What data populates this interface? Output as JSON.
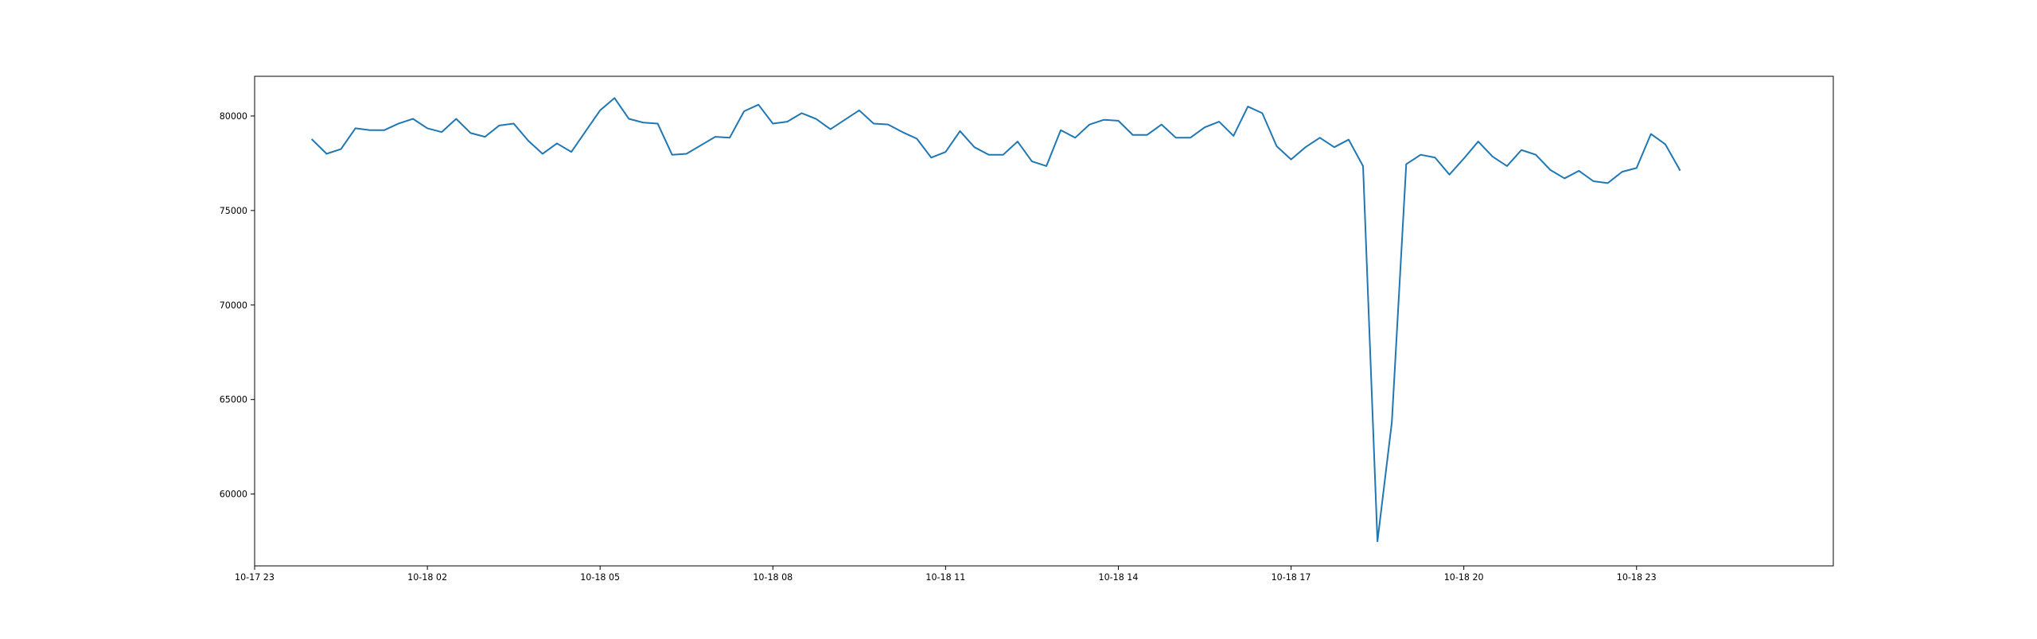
{
  "chart_data": {
    "type": "line",
    "title": "",
    "xlabel": "",
    "ylabel": "",
    "grid": false,
    "legend": "none",
    "colors": {
      "line": "#1f77b4",
      "axes": "#000000",
      "background": "#ffffff"
    },
    "xlim": [
      "2023-10-17 23:00",
      "2023-10-19 02:25"
    ],
    "ylim": [
      56200,
      82100
    ],
    "x_ticks": [
      {
        "value": "2023-10-17 23:00",
        "label": "10-17 23"
      },
      {
        "value": "2023-10-18 02:00",
        "label": "10-18 02"
      },
      {
        "value": "2023-10-18 05:00",
        "label": "10-18 05"
      },
      {
        "value": "2023-10-18 08:00",
        "label": "10-18 08"
      },
      {
        "value": "2023-10-18 11:00",
        "label": "10-18 11"
      },
      {
        "value": "2023-10-18 14:00",
        "label": "10-18 14"
      },
      {
        "value": "2023-10-18 17:00",
        "label": "10-18 17"
      },
      {
        "value": "2023-10-18 20:00",
        "label": "10-18 20"
      },
      {
        "value": "2023-10-18 23:00",
        "label": "10-18 23"
      }
    ],
    "y_ticks": [
      {
        "value": 60000,
        "label": "60000"
      },
      {
        "value": 65000,
        "label": "65000"
      },
      {
        "value": 70000,
        "label": "70000"
      },
      {
        "value": 75000,
        "label": "75000"
      },
      {
        "value": 80000,
        "label": "80000"
      }
    ],
    "series": [
      {
        "x": [
          "2023-10-18 00:00",
          "2023-10-18 00:15",
          "2023-10-18 00:30",
          "2023-10-18 00:45",
          "2023-10-18 01:00",
          "2023-10-18 01:15",
          "2023-10-18 01:30",
          "2023-10-18 01:45",
          "2023-10-18 02:00",
          "2023-10-18 02:15",
          "2023-10-18 02:30",
          "2023-10-18 02:45",
          "2023-10-18 03:00",
          "2023-10-18 03:15",
          "2023-10-18 03:30",
          "2023-10-18 03:45",
          "2023-10-18 04:00",
          "2023-10-18 04:15",
          "2023-10-18 04:30",
          "2023-10-18 04:45",
          "2023-10-18 05:00",
          "2023-10-18 05:15",
          "2023-10-18 05:30",
          "2023-10-18 05:45",
          "2023-10-18 06:00",
          "2023-10-18 06:15",
          "2023-10-18 06:30",
          "2023-10-18 06:45",
          "2023-10-18 07:00",
          "2023-10-18 07:15",
          "2023-10-18 07:30",
          "2023-10-18 07:45",
          "2023-10-18 08:00",
          "2023-10-18 08:15",
          "2023-10-18 08:30",
          "2023-10-18 08:45",
          "2023-10-18 09:00",
          "2023-10-18 09:15",
          "2023-10-18 09:30",
          "2023-10-18 09:45",
          "2023-10-18 10:00",
          "2023-10-18 10:15",
          "2023-10-18 10:30",
          "2023-10-18 10:45",
          "2023-10-18 11:00",
          "2023-10-18 11:15",
          "2023-10-18 11:30",
          "2023-10-18 11:45",
          "2023-10-18 12:00",
          "2023-10-18 12:15",
          "2023-10-18 12:30",
          "2023-10-18 12:45",
          "2023-10-18 13:00",
          "2023-10-18 13:15",
          "2023-10-18 13:30",
          "2023-10-18 13:45",
          "2023-10-18 14:00",
          "2023-10-18 14:15",
          "2023-10-18 14:30",
          "2023-10-18 14:45",
          "2023-10-18 15:00",
          "2023-10-18 15:15",
          "2023-10-18 15:30",
          "2023-10-18 15:45",
          "2023-10-18 16:00",
          "2023-10-18 16:15",
          "2023-10-18 16:30",
          "2023-10-18 16:45",
          "2023-10-18 17:00",
          "2023-10-18 17:15",
          "2023-10-18 17:30",
          "2023-10-18 17:45",
          "2023-10-18 18:00",
          "2023-10-18 18:15",
          "2023-10-18 18:30",
          "2023-10-18 18:45",
          "2023-10-18 19:00",
          "2023-10-18 19:15",
          "2023-10-18 19:30",
          "2023-10-18 19:45",
          "2023-10-18 20:00",
          "2023-10-18 20:15",
          "2023-10-18 20:30",
          "2023-10-18 20:45",
          "2023-10-18 21:00",
          "2023-10-18 21:15",
          "2023-10-18 21:30",
          "2023-10-18 21:45",
          "2023-10-18 22:00",
          "2023-10-18 22:15",
          "2023-10-18 22:30",
          "2023-10-18 22:45",
          "2023-10-18 23:00",
          "2023-10-18 23:15",
          "2023-10-18 23:30",
          "2023-10-18 23:45"
        ],
        "values": [
          78750,
          78000,
          78250,
          79350,
          79250,
          79250,
          79600,
          79850,
          79350,
          79150,
          79850,
          79100,
          78900,
          79500,
          79600,
          78700,
          78000,
          78550,
          78100,
          79200,
          80300,
          80950,
          79850,
          79650,
          79600,
          77950,
          78000,
          78450,
          78900,
          78850,
          80250,
          80600,
          79600,
          79700,
          80150,
          79850,
          79300,
          79800,
          80300,
          79600,
          79550,
          79150,
          78800,
          77800,
          78100,
          79200,
          78350,
          77950,
          77950,
          78650,
          77600,
          77350,
          79250,
          78850,
          79550,
          79800,
          79750,
          79000,
          79000,
          79550,
          78850,
          78850,
          79400,
          79700,
          78950,
          80500,
          80150,
          78400,
          77700,
          78350,
          78850,
          78350,
          78750,
          77350,
          57500,
          63800,
          77450,
          77950,
          77800,
          76900,
          77750,
          78650,
          77850,
          77350,
          78200,
          77950,
          77150,
          76700,
          77100,
          76550,
          76450,
          77050,
          77250,
          79050,
          78500,
          77150
        ]
      }
    ]
  }
}
